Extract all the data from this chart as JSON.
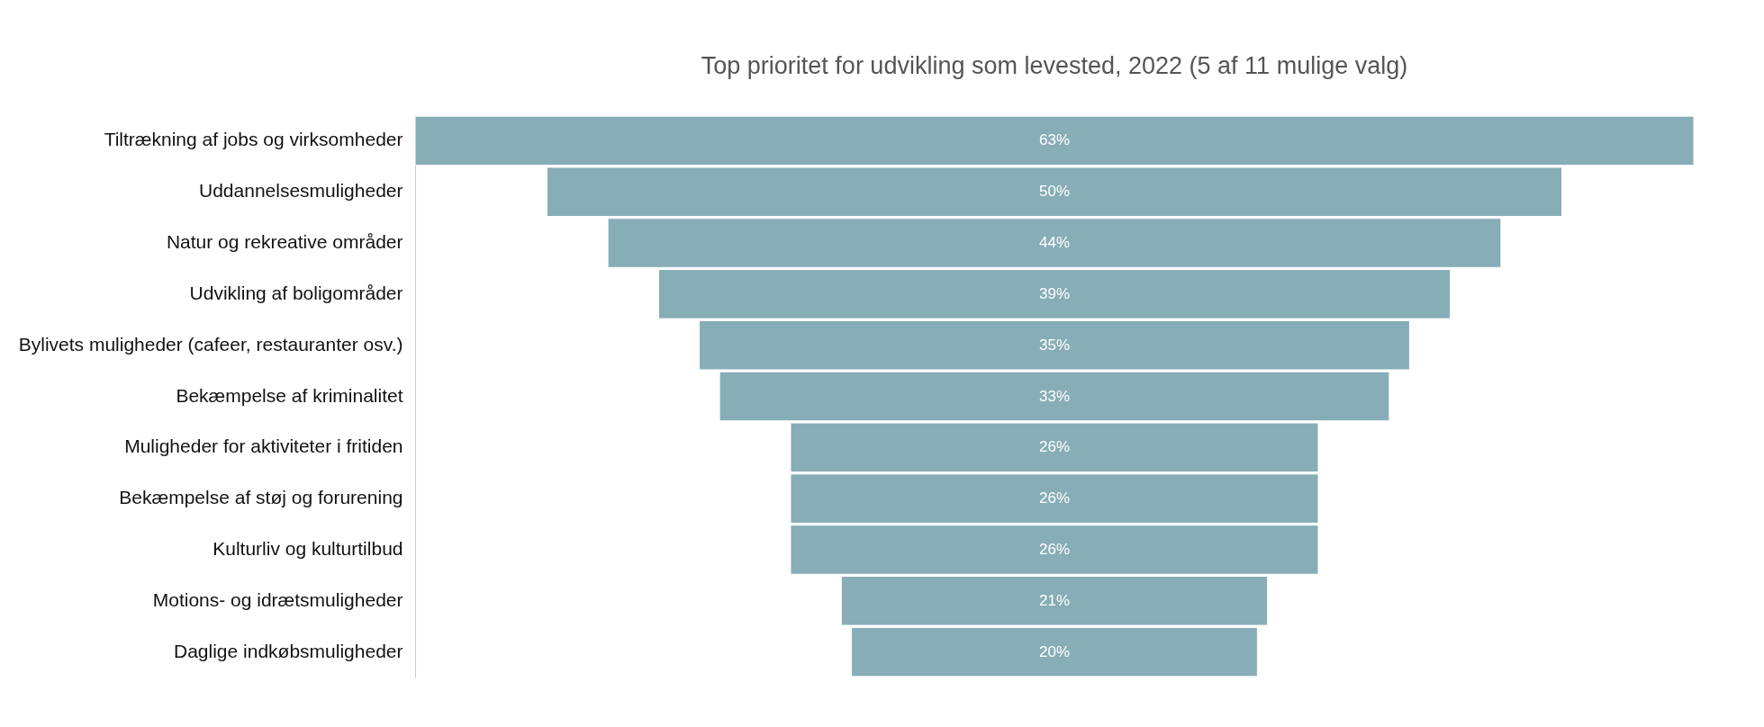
{
  "chart_data": {
    "type": "other",
    "title": "Top prioritet for udvikling som levested, 2022 (5 af 11 mulige valg)",
    "categories": [
      "Tiltrækning af jobs og virksomheder",
      "Uddannelsesmuligheder",
      "Natur og rekreative områder",
      "Udvikling af boligområder",
      "Bylivets muligheder (cafeer, restauranter osv.)",
      "Bekæmpelse af kriminalitet",
      "Muligheder for aktiviteter i fritiden",
      "Bekæmpelse af støj og forurening",
      "Kulturliv og kulturtilbud",
      "Motions- og idrætsmuligheder",
      "Daglige indkøbsmuligheder"
    ],
    "values": [
      63,
      50,
      44,
      39,
      35,
      33,
      26,
      26,
      26,
      21,
      20
    ],
    "value_labels": [
      "63%",
      "50%",
      "44%",
      "39%",
      "35%",
      "33%",
      "26%",
      "26%",
      "26%",
      "21%",
      "20%"
    ],
    "color": "#87adb7"
  }
}
